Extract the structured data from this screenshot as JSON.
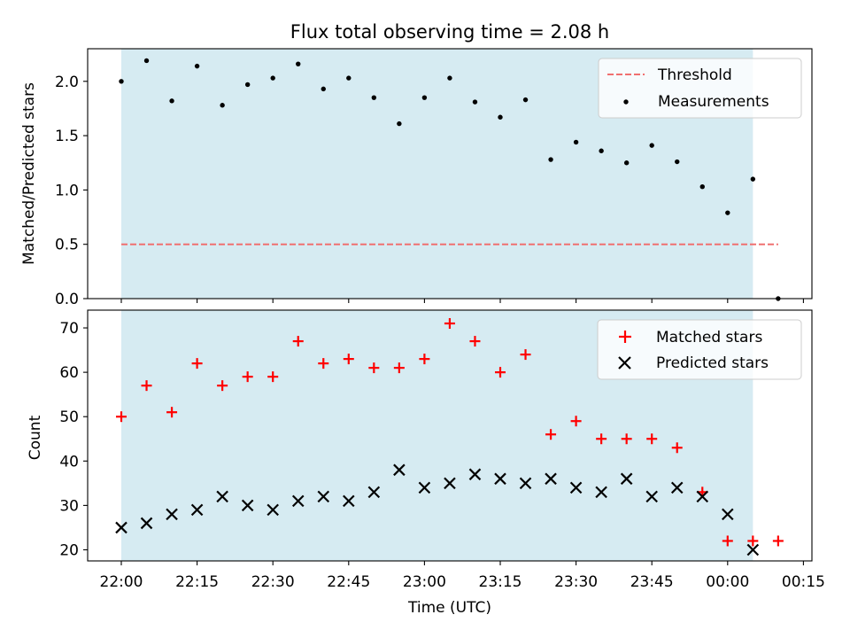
{
  "chart_data": [
    {
      "type": "scatter",
      "title": "Flux total observing time = 2.08 h",
      "xlabel": "",
      "ylabel": "Matched/Predicted stars",
      "ylim": [
        0,
        2.3
      ],
      "yticks": [
        "0.0",
        "0.5",
        "1.0",
        "1.5",
        "2.0"
      ],
      "shaded_span": [
        "22:00",
        "00:05"
      ],
      "legend_position": "top-right",
      "series": [
        {
          "name": "Measurements",
          "marker": "dot",
          "color": "#000000",
          "x": [
            "22:00",
            "22:05",
            "22:10",
            "22:15",
            "22:20",
            "22:25",
            "22:30",
            "22:35",
            "22:40",
            "22:45",
            "22:50",
            "22:55",
            "23:00",
            "23:05",
            "23:10",
            "23:15",
            "23:20",
            "23:25",
            "23:30",
            "23:35",
            "23:40",
            "23:45",
            "23:50",
            "23:55",
            "00:00",
            "00:05",
            "00:10"
          ],
          "values": [
            2.0,
            2.19,
            1.82,
            2.14,
            1.78,
            1.97,
            2.03,
            2.16,
            1.93,
            2.03,
            1.85,
            1.61,
            1.85,
            2.03,
            1.81,
            1.67,
            1.83,
            1.28,
            1.44,
            1.36,
            1.25,
            1.41,
            1.26,
            1.03,
            0.79,
            1.1,
            0.0
          ]
        },
        {
          "name": "Threshold",
          "marker": "dashed-line",
          "color": "#f07070",
          "x": [
            "22:00",
            "00:10"
          ],
          "values": [
            0.5,
            0.5
          ]
        }
      ]
    },
    {
      "type": "scatter",
      "title": "",
      "xlabel": "Time (UTC)",
      "ylabel": "Count",
      "ylim": [
        17.5,
        74
      ],
      "yticks": [
        "20",
        "30",
        "40",
        "50",
        "60",
        "70"
      ],
      "xticks": [
        "22:00",
        "22:15",
        "22:30",
        "22:45",
        "23:00",
        "23:15",
        "23:30",
        "23:45",
        "00:00",
        "00:15"
      ],
      "shaded_span": [
        "22:00",
        "00:05"
      ],
      "legend_position": "top-right",
      "series": [
        {
          "name": "Matched stars",
          "marker": "plus",
          "color": "#ff0000",
          "x": [
            "22:00",
            "22:05",
            "22:10",
            "22:15",
            "22:20",
            "22:25",
            "22:30",
            "22:35",
            "22:40",
            "22:45",
            "22:50",
            "22:55",
            "23:00",
            "23:05",
            "23:10",
            "23:15",
            "23:20",
            "23:25",
            "23:30",
            "23:35",
            "23:40",
            "23:45",
            "23:50",
            "23:55",
            "00:00",
            "00:05",
            "00:10"
          ],
          "values": [
            50,
            57,
            51,
            62,
            57,
            59,
            59,
            67,
            62,
            63,
            61,
            61,
            63,
            71,
            67,
            60,
            64,
            46,
            49,
            45,
            45,
            45,
            43,
            33,
            22,
            22,
            22
          ]
        },
        {
          "name": "Predicted stars",
          "marker": "x",
          "color": "#000000",
          "x": [
            "22:00",
            "22:05",
            "22:10",
            "22:15",
            "22:20",
            "22:25",
            "22:30",
            "22:35",
            "22:40",
            "22:45",
            "22:50",
            "22:55",
            "23:00",
            "23:05",
            "23:10",
            "23:15",
            "23:20",
            "23:25",
            "23:30",
            "23:35",
            "23:40",
            "23:45",
            "23:50",
            "23:55",
            "00:00",
            "00:05"
          ],
          "values": [
            25,
            26,
            28,
            29,
            32,
            30,
            29,
            31,
            32,
            31,
            33,
            38,
            34,
            35,
            37,
            36,
            35,
            36,
            34,
            33,
            36,
            32,
            34,
            32,
            28,
            20
          ]
        }
      ]
    }
  ]
}
